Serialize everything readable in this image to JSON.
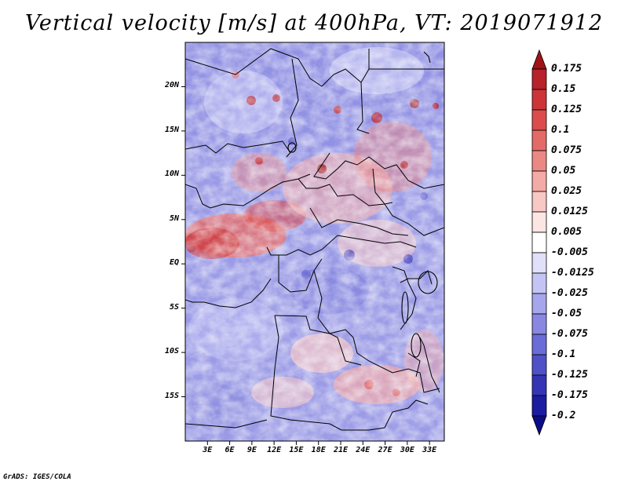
{
  "title": "Vertical velocity [m/s] at 400hPa, VT: 2019071912",
  "credit": "GrADS: IGES/COLA",
  "map": {
    "variable": "Vertical velocity",
    "units": "m/s",
    "level": "400hPa",
    "valid_time": "2019071912",
    "lon_range": [
      0,
      35
    ],
    "lat_range": [
      -20,
      25
    ],
    "lat_ticks": [
      "20N",
      "15N",
      "10N",
      "5N",
      "EQ",
      "5S",
      "10S",
      "15S"
    ],
    "lat_values": [
      20,
      15,
      10,
      5,
      0,
      -5,
      -10,
      -15
    ],
    "lon_ticks": [
      "3E",
      "6E",
      "9E",
      "12E",
      "15E",
      "18E",
      "21E",
      "24E",
      "27E",
      "30E",
      "33E"
    ],
    "lon_values": [
      3,
      6,
      9,
      12,
      15,
      18,
      21,
      24,
      27,
      30,
      33
    ]
  },
  "colorbar": {
    "labels": [
      "0.175",
      "0.15",
      "0.125",
      "0.1",
      "0.075",
      "0.05",
      "0.025",
      "0.0125",
      "0.005",
      "-0.005",
      "-0.0125",
      "-0.025",
      "-0.05",
      "-0.075",
      "-0.1",
      "-0.125",
      "-0.175",
      "-0.2"
    ],
    "colors": [
      "#a01418",
      "#b8202a",
      "#cc3438",
      "#dc4c4c",
      "#e46a68",
      "#ec8884",
      "#f4aaa6",
      "#f8c8c4",
      "#fce6e4",
      "#ffffff",
      "#e0e0fa",
      "#c4c4f4",
      "#a6a6ec",
      "#8888e2",
      "#6c6cd8",
      "#5050c8",
      "#3434b4",
      "#1c1ca0",
      "#0c0c88"
    ]
  }
}
